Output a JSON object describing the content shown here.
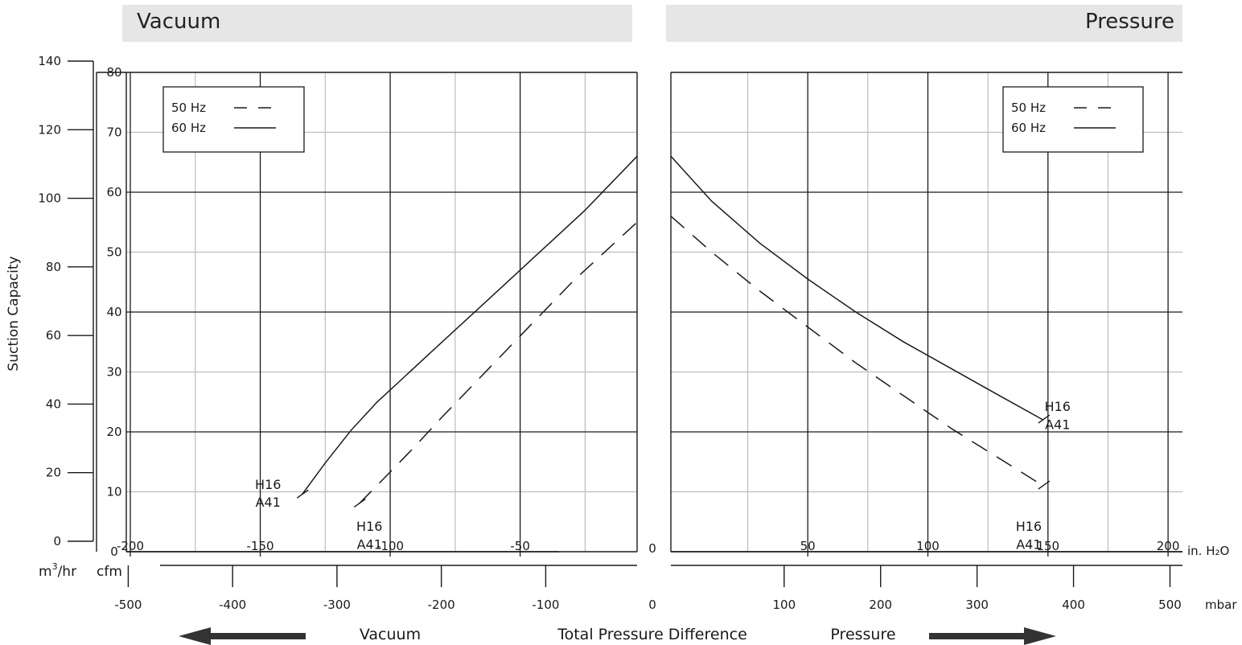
{
  "banners": {
    "vacuum": "Vacuum",
    "pressure": "Pressure"
  },
  "axis_labels": {
    "y_title": "Suction Capacity",
    "unit_m3hr_base": "m",
    "unit_m3hr_sup": "3",
    "unit_m3hr_rest": "/hr",
    "unit_cfm": "cfm",
    "unit_inh2o": "in. H₂O",
    "unit_mbar": "mbar",
    "zero_inh2o": "0",
    "zero_mbar": "0"
  },
  "bottom_labels": {
    "vacuum": "Vacuum",
    "total": "Total Pressure Difference",
    "pressure": "Pressure"
  },
  "chart_data": [
    {
      "type": "line",
      "panel": "vacuum",
      "title": "Vacuum",
      "xlabel": "in. H₂O",
      "ylabel": "cfm",
      "xlim": [
        -213,
        -5
      ],
      "ylim": [
        0,
        80
      ],
      "x_ticks": [
        -200,
        -150,
        -100,
        -50
      ],
      "y_ticks": [
        0,
        10,
        20,
        30,
        40,
        50,
        60,
        70,
        80
      ],
      "grid": true,
      "legend": "top-left",
      "series": [
        {
          "name": "50 Hz",
          "style": "dashed",
          "points": [
            [
              -112,
              8
            ],
            [
              -100,
              13.3
            ],
            [
              -90,
              17.8
            ],
            [
              -80,
              22.5
            ],
            [
              -70,
              27
            ],
            [
              -60,
              31.5
            ],
            [
              -50,
              36
            ],
            [
              -40,
              40.5
            ],
            [
              -30,
              45
            ],
            [
              -20,
              49
            ],
            [
              -10,
              53
            ],
            [
              -5,
              55
            ]
          ]
        },
        {
          "name": "60 Hz",
          "style": "solid",
          "points": [
            [
              -134,
              9.5
            ],
            [
              -125,
              14.8
            ],
            [
              -115,
              20.3
            ],
            [
              -105,
              25
            ],
            [
              -95,
              29
            ],
            [
              -85,
              33
            ],
            [
              -75,
              37
            ],
            [
              -65,
              41
            ],
            [
              -55,
              45
            ],
            [
              -45,
              49
            ],
            [
              -35,
              53
            ],
            [
              -25,
              57
            ],
            [
              -15,
              61.5
            ],
            [
              -5,
              66
            ]
          ]
        }
      ],
      "annotations": [
        {
          "text": "H16",
          "x": -147,
          "y": 10.5,
          "series": "60 Hz"
        },
        {
          "text": "A41",
          "x": -147,
          "y": 7.5,
          "series": "60 Hz"
        },
        {
          "text": "H16",
          "x": -108,
          "y": 3.5,
          "series": "50 Hz"
        },
        {
          "text": "A41",
          "x": -108,
          "y": 0.5,
          "series": "50 Hz"
        }
      ]
    },
    {
      "type": "line",
      "panel": "pressure",
      "title": "Pressure",
      "xlabel": "in. H₂O",
      "ylabel": "cfm",
      "xlim": [
        -7,
        206
      ],
      "ylim": [
        0,
        80
      ],
      "x_ticks": [
        50,
        100,
        150,
        200
      ],
      "y_ticks": [
        0,
        10,
        20,
        30,
        40,
        50,
        60,
        70,
        80
      ],
      "grid": true,
      "legend": "top-right",
      "series": [
        {
          "name": "50 Hz",
          "style": "dashed",
          "points": [
            [
              -7,
              56
            ],
            [
              10,
              50
            ],
            [
              30,
              43.5
            ],
            [
              50,
              37.5
            ],
            [
              70,
              31.5
            ],
            [
              90,
              26
            ],
            [
              110,
              20.5
            ],
            [
              130,
              15.5
            ],
            [
              148,
              11
            ]
          ]
        },
        {
          "name": "60 Hz",
          "style": "solid",
          "points": [
            [
              -7,
              66
            ],
            [
              10,
              58.5
            ],
            [
              30,
              51.5
            ],
            [
              50,
              45.5
            ],
            [
              70,
              40
            ],
            [
              90,
              35
            ],
            [
              110,
              30.5
            ],
            [
              130,
              26
            ],
            [
              148,
              22
            ]
          ]
        }
      ],
      "annotations": [
        {
          "text": "H16",
          "x": 154,
          "y": 23.5,
          "series": "60 Hz"
        },
        {
          "text": "A41",
          "x": 154,
          "y": 20.5,
          "series": "60 Hz"
        },
        {
          "text": "H16",
          "x": 142,
          "y": 3.5,
          "series": "50 Hz"
        },
        {
          "text": "A41",
          "x": 142,
          "y": 0.5,
          "series": "50 Hz"
        }
      ]
    }
  ],
  "secondary_axes": {
    "m3hr_ticks": [
      0,
      20,
      40,
      60,
      80,
      100,
      120,
      140
    ],
    "mbar_ticks": [
      -500,
      -400,
      -300,
      -200,
      -100,
      100,
      200,
      300,
      400,
      500
    ],
    "mbar_per_inh2o": 2.49
  },
  "colors": {
    "banner": "#e6e6e6",
    "grid_major": "#1a1a1a",
    "grid_minor": "#bdbdbd",
    "arrow": "#333333"
  }
}
